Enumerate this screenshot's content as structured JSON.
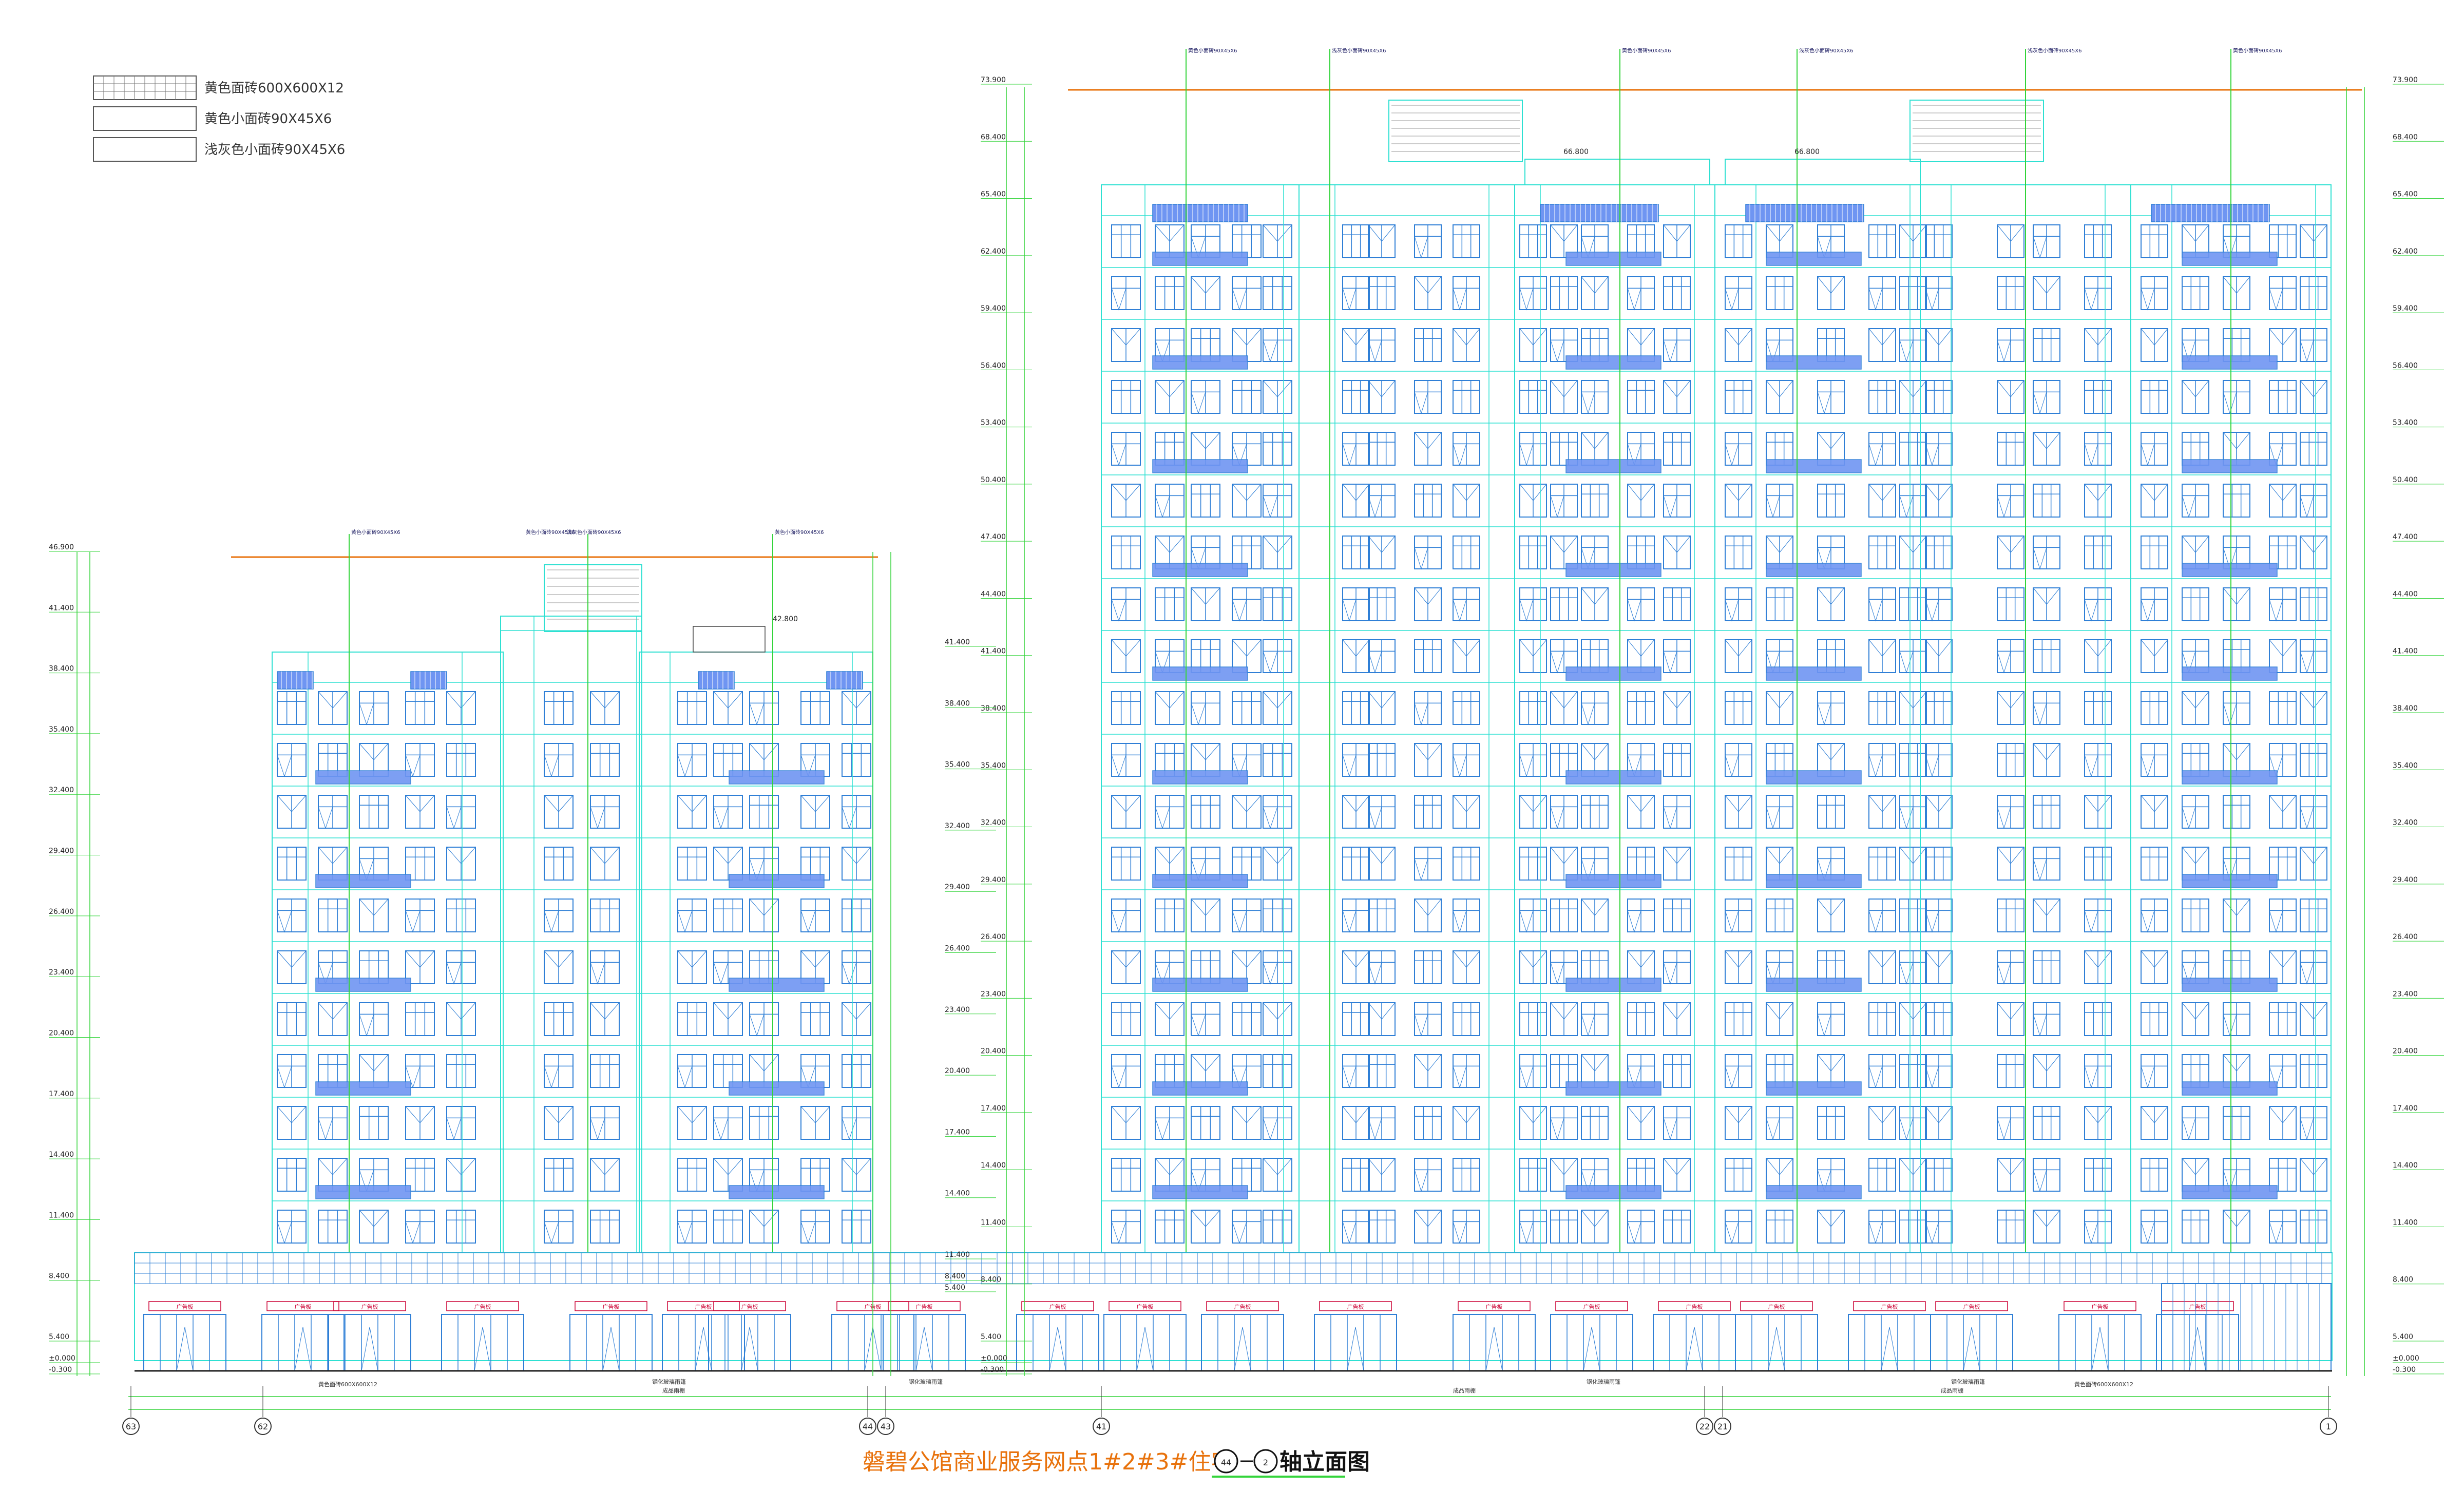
{
  "legend": [
    {
      "label": "黄色面砖600X600X12",
      "pattern": "grid"
    },
    {
      "label": "黄色小面砖90X45X6",
      "pattern": "plain"
    },
    {
      "label": "浅灰色小面砖90X45X6",
      "pattern": "plain"
    }
  ],
  "title": {
    "main": "磐碧公馆商业服务网点1#2#3#住宅",
    "axis_from": "44",
    "axis_to": "2",
    "suffix": "轴立面图"
  },
  "levels": {
    "low_block": [
      "46.900",
      "41.400",
      "38.400",
      "35.400",
      "32.400",
      "29.400",
      "26.400",
      "23.400",
      "20.400",
      "17.400",
      "14.400",
      "11.400",
      "8.400",
      "5.400",
      "±0.000",
      "-0.300"
    ],
    "high_block": [
      "73.900",
      "68.400",
      "65.400",
      "62.400",
      "59.400",
      "56.400",
      "53.400",
      "50.400",
      "47.400",
      "44.400",
      "41.400",
      "38.400",
      "35.400",
      "32.400",
      "29.400",
      "26.400",
      "23.400",
      "20.400",
      "17.400",
      "14.400",
      "11.400",
      "8.400",
      "5.400",
      "±0.000",
      "-0.300"
    ],
    "inner_low": [
      "41.400",
      "38.400",
      "35.400",
      "32.400",
      "29.400",
      "26.400",
      "23.400",
      "20.400",
      "17.400",
      "14.400",
      "11.400",
      "8.400",
      "5.400"
    ],
    "roof_marks": [
      "42.800",
      "66.800",
      "66.800"
    ]
  },
  "axes": [
    "63",
    "62",
    "44",
    "43",
    "41",
    "22",
    "21",
    "1"
  ],
  "shop_label": "广告板",
  "callouts": [
    "黄色小面砖90X45X6",
    "黄色小面砖90X45X6",
    "浅灰色小面砖90X45X6",
    "黄色小面砖90X45X6",
    "黄色小面砖90X45X6",
    "浅灰色小面砖90X45X6",
    "黄色小面砖90X45X6",
    "浅灰色小面砖90X45X6",
    "浅灰色小面砖90X45X6",
    "黄色小面砖90X45X6"
  ],
  "ground_notes": [
    "黄色面砖600X600X12",
    "钢化玻璃雨篷",
    "成品雨棚",
    "钢化玻璃雨篷",
    "钢化玻璃雨篷",
    "成品雨棚",
    "钢化玻璃雨篷",
    "成品雨棚",
    "黄色面砖600X600X12"
  ],
  "colors": {
    "window": "#2f7fd6",
    "frame": "#2ee0d2",
    "green": "#33d43a",
    "roof": "#e8720c",
    "balcony": "#6f95f2",
    "ink": "#222222"
  }
}
